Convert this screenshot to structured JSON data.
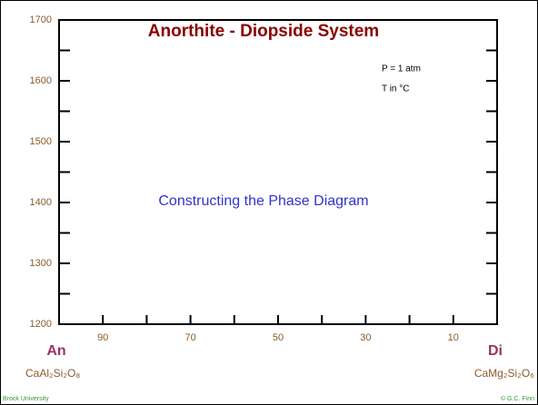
{
  "title": "Anorthite - Diopside System",
  "conditions": [
    "P = 1 atm",
    "T in °C"
  ],
  "subtitle": "Constructing the Phase Diagram",
  "left_end": {
    "label": "An",
    "formula": "CaAl₂Si₂O₈"
  },
  "right_end": {
    "label": "Di",
    "formula": "CaMg₂Si₂O₆"
  },
  "footer": {
    "left": "Brock University",
    "right": "© G.C. Finn"
  },
  "axes": {
    "ylim": [
      1200,
      1700
    ],
    "yticks": [
      1200,
      1300,
      1400,
      1500,
      1600,
      1700
    ],
    "yticks_minor": [
      1250,
      1350,
      1450,
      1550,
      1650
    ],
    "xlim": [
      100,
      0
    ],
    "xticks": [
      90,
      70,
      50,
      30,
      10
    ],
    "xticks_minor": [
      80,
      60,
      40,
      20
    ]
  }
}
